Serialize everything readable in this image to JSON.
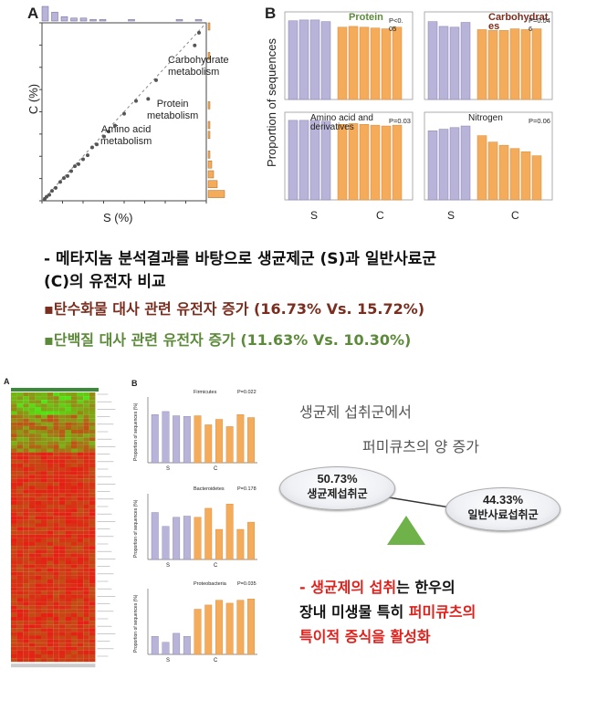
{
  "colors": {
    "lavender": "#b8b3d8",
    "orange": "#f4ab5a",
    "green_text": "#5c8a3a",
    "red_text": "#7a2e1f",
    "bright_red": "#e0201b",
    "triangle": "#6fb24a"
  },
  "panel_A": {
    "letter": "A",
    "xlabel": "S (%)",
    "ylabel": "C (%)",
    "annot_carb": "Carbohydrate\nmetabolism",
    "annot_protein": "Protein\nmetabolism",
    "annot_amino": "Amino acid\nmetabolism",
    "scatter_points": [
      [
        0.3,
        0.2
      ],
      [
        0.5,
        0.4
      ],
      [
        0.8,
        0.6
      ],
      [
        1.1,
        1
      ],
      [
        1.5,
        1.3
      ],
      [
        2,
        1.9
      ],
      [
        2.4,
        2.3
      ],
      [
        2.8,
        2.5
      ],
      [
        3.2,
        3
      ],
      [
        3.6,
        3.5
      ],
      [
        4,
        3.7
      ],
      [
        4.5,
        4.2
      ],
      [
        5,
        4.6
      ],
      [
        5.5,
        5.4
      ],
      [
        6,
        5.7
      ],
      [
        6.8,
        6.5
      ],
      [
        7.3,
        7
      ],
      [
        8,
        7.6
      ],
      [
        9,
        8.8
      ],
      [
        10.3,
        10.1
      ],
      [
        11.63,
        10.3
      ],
      [
        12.5,
        12.2
      ],
      [
        16.73,
        15.72
      ],
      [
        17.2,
        17
      ]
    ]
  },
  "panel_B": {
    "letter": "B",
    "ylabel": "Proportion of sequences",
    "group_s": "S",
    "group_c": "C",
    "chart_data": [
      {
        "type": "bar",
        "title": "Protein",
        "pvalue": "P<0.\n05",
        "values": [
          0.98,
          0.99,
          0.99,
          0.97,
          0.9,
          0.91,
          0.9,
          0.89,
          0.88,
          0.9
        ]
      },
      {
        "type": "bar",
        "title": "Carbohydrat\nes",
        "pvalue": "P=0.04\n6",
        "values": [
          0.97,
          0.91,
          0.9,
          0.96,
          0.87,
          0.86,
          0.86,
          0.88,
          0.87,
          0.88
        ]
      },
      {
        "type": "bar",
        "title": "Amino acid and\nderivatives",
        "pvalue": "P=0.03",
        "values": [
          0.99,
          0.99,
          0.99,
          0.98,
          0.94,
          0.95,
          0.94,
          0.93,
          0.92,
          0.93
        ]
      },
      {
        "type": "bar",
        "title": "Nitrogen",
        "pvalue": "P=0.06",
        "values": [
          0.86,
          0.88,
          0.9,
          0.92,
          0.8,
          0.72,
          0.68,
          0.64,
          0.6,
          0.55
        ]
      }
    ]
  },
  "summary": {
    "line1": "- 메타지놈 분석결과를 바탕으로 생균제군 (S)과 일반사료군",
    "line2": "(C)의 유전자 비교",
    "bullet1": "▪탄수화물 대사 관련 유전자 증가 (16.73% Vs. 15.72%)",
    "bullet2": "▪단백질 대사 관련 유전자 증가 (11.63% Vs. 10.30%)"
  },
  "heatmap_panel": {
    "letter": "A"
  },
  "bottom_B": {
    "letter": "B",
    "ylabel": "Proportion of sequences (%)",
    "group_s": "S",
    "group_c": "C",
    "chart_data": [
      {
        "type": "bar",
        "title": "Firmicutes",
        "pvalue": "P=0.022",
        "values": [
          0.8,
          0.85,
          0.78,
          0.77,
          0.78,
          0.63,
          0.72,
          0.6,
          0.8,
          0.75
        ]
      },
      {
        "type": "bar",
        "title": "Bacteroidetes",
        "pvalue": "P=0.178",
        "values": [
          0.78,
          0.55,
          0.7,
          0.72,
          0.7,
          0.85,
          0.5,
          0.92,
          0.5,
          0.62
        ]
      },
      {
        "type": "bar",
        "title": "Proteobacteria",
        "pvalue": "P=0.035",
        "values": [
          0.3,
          0.2,
          0.35,
          0.3,
          0.75,
          0.82,
          0.9,
          0.85,
          0.9,
          0.92
        ]
      }
    ]
  },
  "right_text": {
    "line1": "생균제 섭취군에서",
    "line2": "퍼미큐츠의 양 증가",
    "ellipse_left_pct": "50.73%",
    "ellipse_left_label": "생균제섭취군",
    "ellipse_right_pct": "44.33%",
    "ellipse_right_label": "일반사료섭취군",
    "conclusion1_red": "- 생균제의 섭취",
    "conclusion1_black": "는 한우의",
    "conclusion2_black": "장내 미생물 특히 ",
    "conclusion2_red": "퍼미큐츠의",
    "conclusion3_red": "특이적 증식을 활성화"
  }
}
